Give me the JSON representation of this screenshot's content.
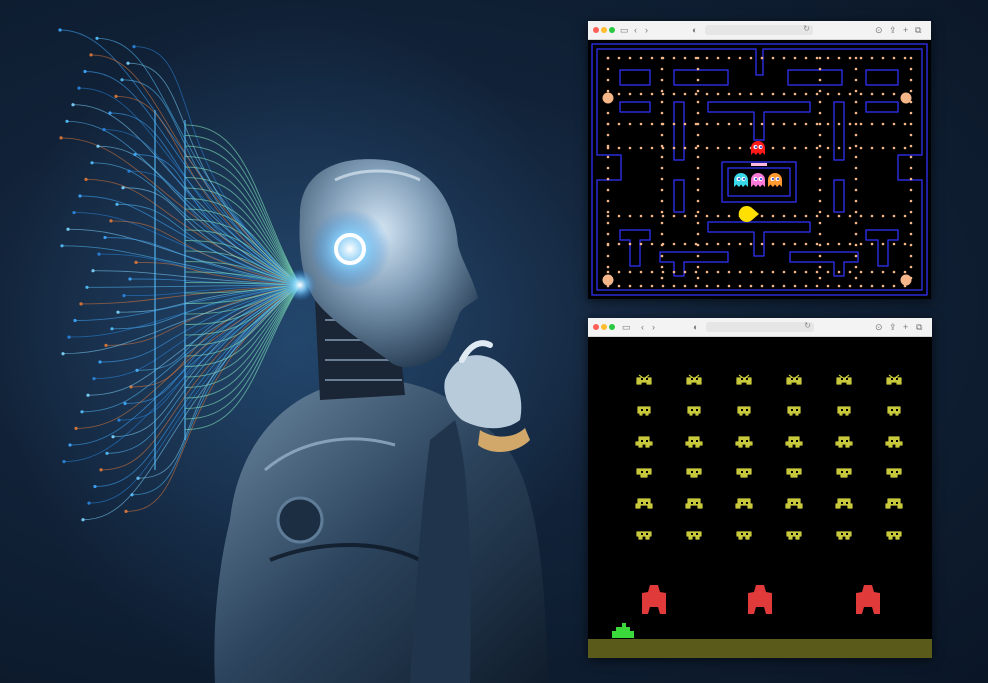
{
  "browser_toolbar": {
    "traffic_lights": [
      "#ff5f57",
      "#febc2e",
      "#28c840"
    ],
    "icons": [
      "sidebar-icon",
      "back-chevron-icon",
      "forward-chevron-icon",
      "shield-icon",
      "reload-icon",
      "download-icon",
      "share-icon",
      "new-tab-icon",
      "tabs-icon"
    ]
  },
  "colors": {
    "maze_wall": "#2a2ad8",
    "pellet": "#f5b68a",
    "pacman": "#ffe000",
    "ghost_red": "#ff1a1a",
    "ghost_cyan": "#38d8e8",
    "ghost_pink": "#ff7ad8",
    "ghost_orange": "#ff9a30",
    "invader": "#c8c83c",
    "bunker": "#e03a3a",
    "player_cannon": "#3ad83a",
    "ground": "#5a5a1a"
  },
  "pacman_game": {
    "ghosts": 4,
    "power_pellets": 4
  },
  "invaders_game": {
    "rows": 6,
    "columns": 6,
    "bunkers": 3
  }
}
